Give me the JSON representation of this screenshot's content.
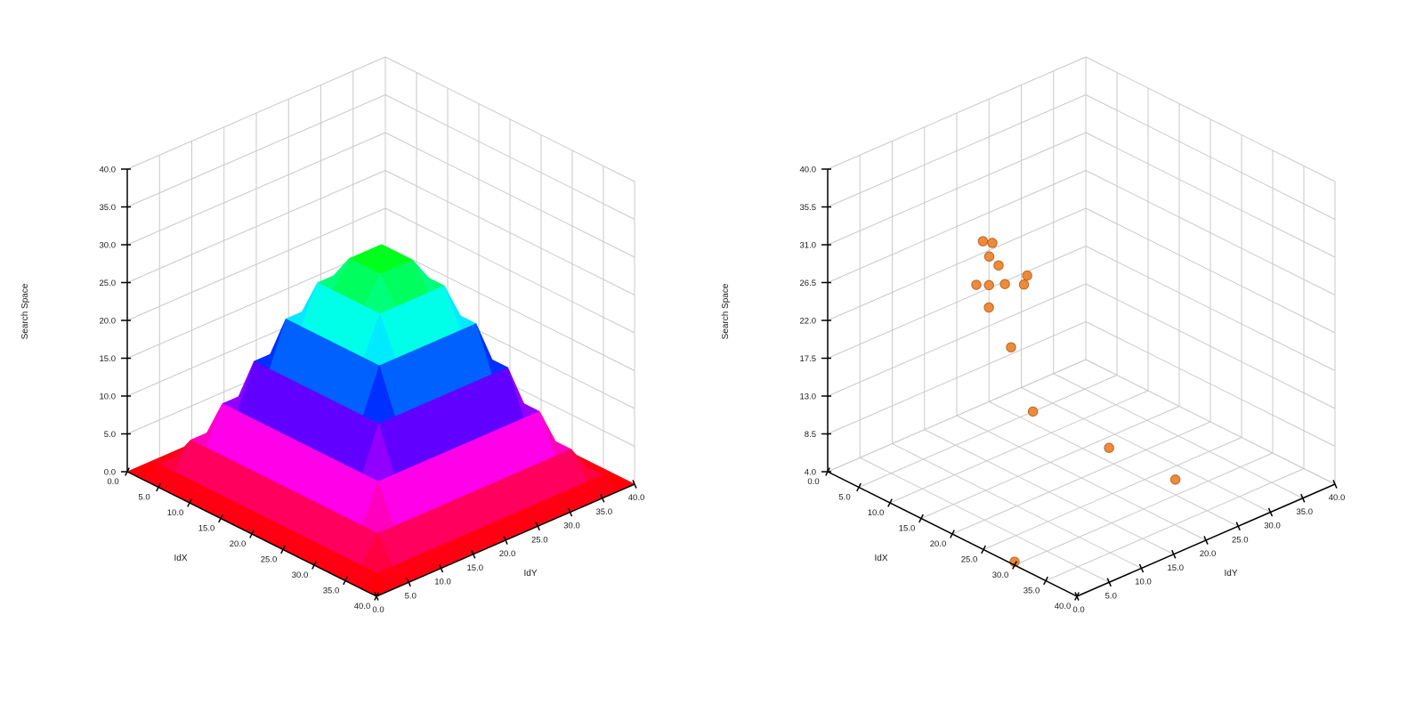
{
  "page": {
    "background": "#ffffff"
  },
  "chart_data": [
    {
      "id": "surface-plot",
      "type": "surface",
      "title": "",
      "xlabel": "IdX",
      "ylabel": "IdY",
      "zlabel": "Search Space",
      "x_range": [
        0,
        40
      ],
      "y_range": [
        0,
        40
      ],
      "z_range": [
        0,
        40
      ],
      "x_tick_labels": [
        "0.0",
        "5.0",
        "10.0",
        "15.0",
        "20.0",
        "25.0",
        "30.0",
        "35.0",
        "40.0"
      ],
      "y_tick_labels": [
        "0.0",
        "5.0",
        "10.0",
        "15.0",
        "20.0",
        "25.0",
        "30.0",
        "35.0",
        "40.0"
      ],
      "z_tick_labels": [
        "0.0",
        "5.0",
        "10.0",
        "15.0",
        "20.0",
        "25.0",
        "30.0",
        "35.0",
        "40.0"
      ],
      "grid_color": "#c9c9c9",
      "axis_color": "#000000",
      "colormap": {
        "style": "rainbow-hsv",
        "zmin": 0,
        "zmax": 30,
        "hue_at_min": 360,
        "hue_at_max": 120,
        "low_color": "#ff0000",
        "mid_color": "#0000ff",
        "high_color": "#00cc33"
      },
      "surface": {
        "x": [
          0,
          2.5,
          5,
          7.5,
          10,
          12.5,
          15,
          17.5,
          20,
          22.5,
          25,
          27.5,
          30,
          32.5,
          35,
          37.5,
          40
        ],
        "y": [
          0,
          2.5,
          5,
          7.5,
          10,
          12.5,
          15,
          17.5,
          20,
          22.5,
          25,
          27.5,
          30,
          32.5,
          35,
          37.5,
          40
        ],
        "z_values": [
          [
            0,
            0,
            0,
            0,
            0,
            0,
            0,
            0,
            0,
            0,
            0,
            0,
            0,
            0,
            0,
            0,
            0
          ],
          [
            0,
            1.1,
            1.1,
            1.1,
            1.1,
            1.1,
            1.1,
            1.1,
            1.1,
            1.1,
            1.1,
            1.1,
            1.1,
            1.1,
            1.1,
            1.1,
            0
          ],
          [
            0,
            1.1,
            4.4,
            4.4,
            4.4,
            4.4,
            4.4,
            4.4,
            4.4,
            4.4,
            4.4,
            4.4,
            4.4,
            4.4,
            4.4,
            1.1,
            0
          ],
          [
            0,
            1.1,
            4.4,
            9.3,
            9.3,
            9.3,
            9.3,
            9.3,
            9.3,
            9.3,
            9.3,
            9.3,
            9.3,
            9.3,
            4.4,
            1.1,
            0
          ],
          [
            0,
            1.1,
            4.4,
            9.3,
            15,
            15,
            15,
            15,
            15,
            15,
            15,
            15,
            15,
            9.3,
            4.4,
            1.1,
            0
          ],
          [
            0,
            1.1,
            4.4,
            9.3,
            15,
            20.7,
            20.7,
            20.7,
            20.7,
            20.7,
            20.7,
            20.7,
            15,
            9.3,
            4.4,
            1.1,
            0
          ],
          [
            0,
            1.1,
            4.4,
            9.3,
            15,
            20.7,
            25.6,
            25.6,
            25.6,
            25.6,
            25.6,
            20.7,
            15,
            9.3,
            4.4,
            1.1,
            0
          ],
          [
            0,
            1.1,
            4.4,
            9.3,
            15,
            20.7,
            25.6,
            28.9,
            28.9,
            28.9,
            25.6,
            20.7,
            15,
            9.3,
            4.4,
            1.1,
            0
          ],
          [
            0,
            1.1,
            4.4,
            9.3,
            15,
            20.7,
            25.6,
            28.9,
            30,
            28.9,
            25.6,
            20.7,
            15,
            9.3,
            4.4,
            1.1,
            0
          ],
          [
            0,
            1.1,
            4.4,
            9.3,
            15,
            20.7,
            25.6,
            28.9,
            28.9,
            28.9,
            25.6,
            20.7,
            15,
            9.3,
            4.4,
            1.1,
            0
          ],
          [
            0,
            1.1,
            4.4,
            9.3,
            15,
            20.7,
            25.6,
            25.6,
            25.6,
            25.6,
            25.6,
            20.7,
            15,
            9.3,
            4.4,
            1.1,
            0
          ],
          [
            0,
            1.1,
            4.4,
            9.3,
            15,
            20.7,
            20.7,
            20.7,
            20.7,
            20.7,
            20.7,
            20.7,
            15,
            9.3,
            4.4,
            1.1,
            0
          ],
          [
            0,
            1.1,
            4.4,
            9.3,
            15,
            15,
            15,
            15,
            15,
            15,
            15,
            15,
            15,
            9.3,
            4.4,
            1.1,
            0
          ],
          [
            0,
            1.1,
            4.4,
            9.3,
            9.3,
            9.3,
            9.3,
            9.3,
            9.3,
            9.3,
            9.3,
            9.3,
            9.3,
            9.3,
            4.4,
            1.1,
            0
          ],
          [
            0,
            1.1,
            4.4,
            4.4,
            4.4,
            4.4,
            4.4,
            4.4,
            4.4,
            4.4,
            4.4,
            4.4,
            4.4,
            4.4,
            4.4,
            1.1,
            0
          ],
          [
            0,
            1.1,
            1.1,
            1.1,
            1.1,
            1.1,
            1.1,
            1.1,
            1.1,
            1.1,
            1.1,
            1.1,
            1.1,
            1.1,
            1.1,
            1.1,
            0
          ],
          [
            0,
            0,
            0,
            0,
            0,
            0,
            0,
            0,
            0,
            0,
            0,
            0,
            0,
            0,
            0,
            0,
            0
          ]
        ]
      }
    },
    {
      "id": "scatter-plot",
      "type": "scatter",
      "title": "",
      "xlabel": "IdX",
      "ylabel": "IdY",
      "zlabel": "Search Space",
      "x_range": [
        0,
        40
      ],
      "y_range": [
        0,
        40
      ],
      "z_range": [
        4,
        40
      ],
      "x_tick_labels": [
        "0.0",
        "5.0",
        "10.0",
        "15.0",
        "20.0",
        "25.0",
        "30.0",
        "35.0",
        "40.0"
      ],
      "y_tick_labels": [
        "0.0",
        "5.0",
        "10.0",
        "15.0",
        "20.0",
        "25.0",
        "30.0",
        "35.0",
        "40.0"
      ],
      "z_tick_labels": [
        "4.0",
        "8.5",
        "13.0",
        "17.5",
        "22.0",
        "26.5",
        "31.0",
        "35.5",
        "40.0"
      ],
      "grid_color": "#c9c9c9",
      "axis_color": "#000000",
      "point_color": "#ED8B3C",
      "point_edge_color": "#C06722",
      "points": [
        {
          "x": 13,
          "y": 11.5,
          "z": 32.4
        },
        {
          "x": 14,
          "y": 12,
          "z": 32.4
        },
        {
          "x": 13.5,
          "y": 12,
          "z": 30.6
        },
        {
          "x": 15,
          "y": 12,
          "z": 30.1
        },
        {
          "x": 17,
          "y": 14.5,
          "z": 28.8
        },
        {
          "x": 13.5,
          "y": 10,
          "z": 27.9
        },
        {
          "x": 14.5,
          "y": 11,
          "z": 27.9
        },
        {
          "x": 15.5,
          "y": 12.5,
          "z": 27.9
        },
        {
          "x": 17,
          "y": 14,
          "z": 27.9
        },
        {
          "x": 15,
          "y": 10.5,
          "z": 25.6
        },
        {
          "x": 17,
          "y": 12,
          "z": 21.1
        },
        {
          "x": 20,
          "y": 12.5,
          "z": 14.4
        },
        {
          "x": 26,
          "y": 18.5,
          "z": 10.3
        },
        {
          "x": 32.5,
          "y": 22.5,
          "z": 7.6
        },
        {
          "x": 30,
          "y": 0,
          "z": 4.4
        }
      ]
    }
  ]
}
